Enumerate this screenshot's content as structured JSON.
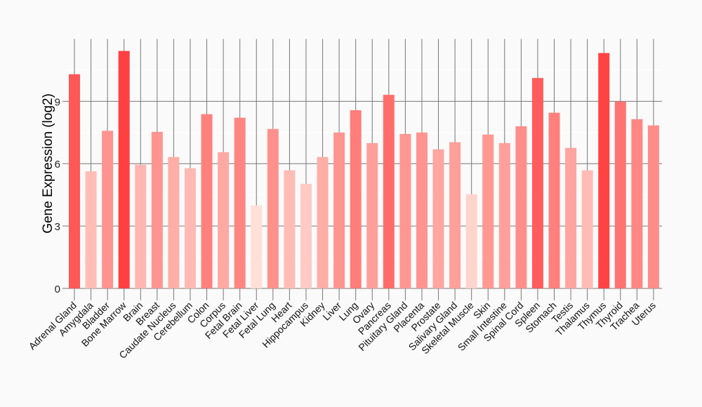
{
  "chart_data": {
    "type": "bar",
    "title": "",
    "xlabel": "",
    "ylabel": "Gene Expression (log2)",
    "ylim": [
      0,
      12
    ],
    "yticks": [
      0,
      3,
      6,
      9
    ],
    "grid": true,
    "categories": [
      "Adrenal Gland",
      "Amygdala",
      "Bladder",
      "Bone Marrow",
      "Brain",
      "Breast",
      "Caudate Nucleus",
      "Cerebellum",
      "Colon",
      "Corpus",
      "Fetal Brain",
      "Fetal Liver",
      "Fetal Lung",
      "Heart",
      "Hippocampus",
      "Kidney",
      "Liver",
      "Lung",
      "Ovary",
      "Pancreas",
      "Pituitary Gland",
      "Placenta",
      "Prostate",
      "Salivary Gland",
      "Skeletal Muscle",
      "Skin",
      "Small Intestine",
      "Spinal Cord",
      "Spleen",
      "Stomach",
      "Testis",
      "Thalamus",
      "Thymus",
      "Thyroid",
      "Trachea",
      "Uterus"
    ],
    "values": [
      10.3,
      5.63,
      7.58,
      11.42,
      5.95,
      7.53,
      6.32,
      5.78,
      8.38,
      6.55,
      8.21,
      3.99,
      7.67,
      5.68,
      5.03,
      6.32,
      7.5,
      8.57,
      6.99,
      9.31,
      7.43,
      7.5,
      6.69,
      7.03,
      4.53,
      7.4,
      6.99,
      7.8,
      10.12,
      8.45,
      6.76,
      5.68,
      11.32,
      8.99,
      8.14,
      7.84
    ],
    "color_low": "#ffe0d8",
    "color_high": "#ff4040"
  }
}
